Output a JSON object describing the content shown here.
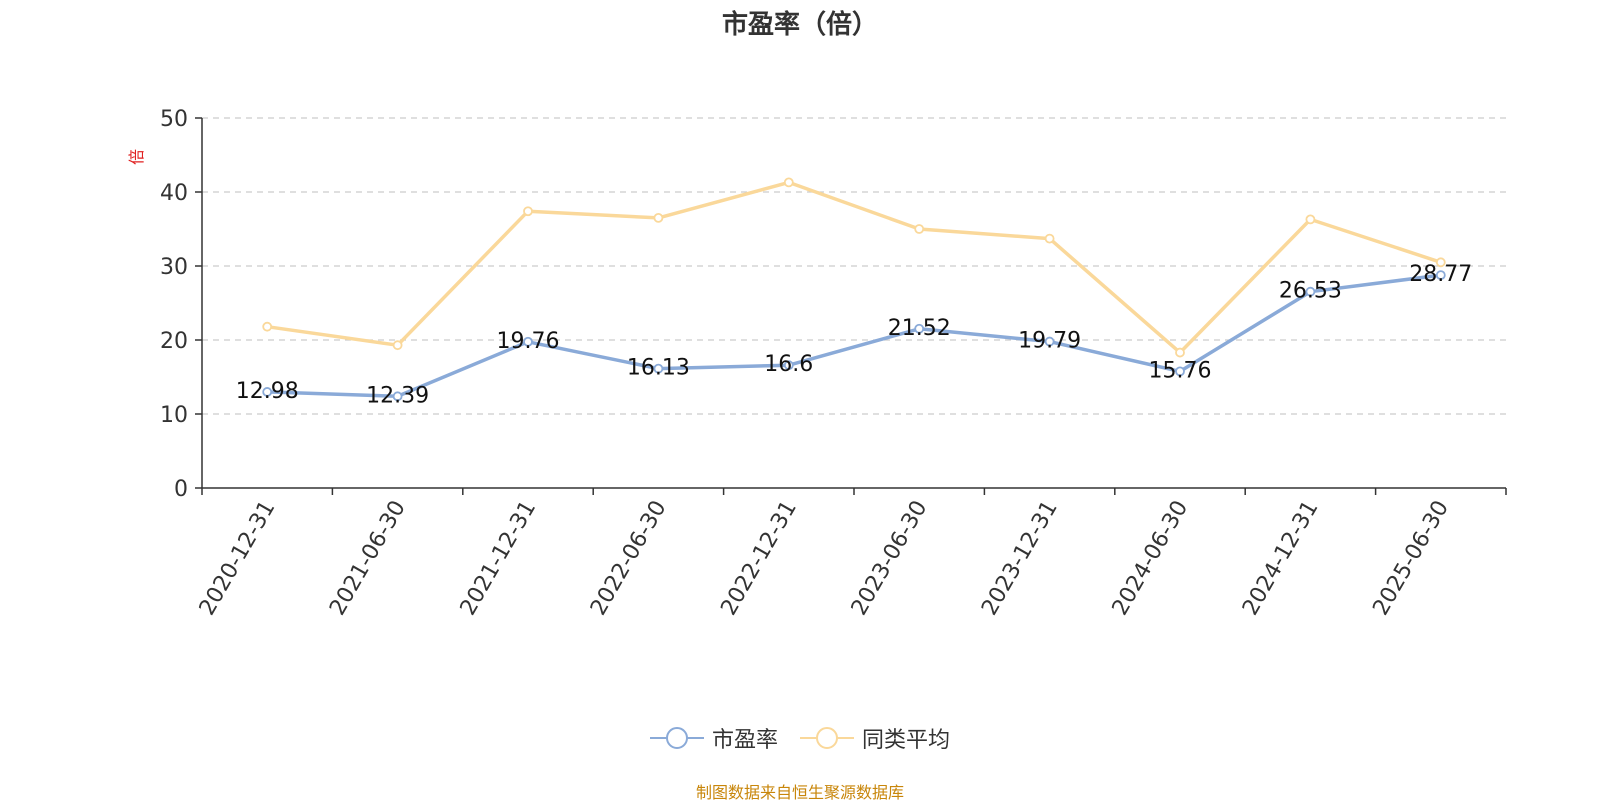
{
  "title": "市盈率（倍）",
  "source_note": "制图数据来自恒生聚源数据库",
  "colors": {
    "series_1": "#8aaad8",
    "series_2": "#fad89a",
    "axis": "#333333",
    "grid": "#cccccc",
    "ylabel": "#e02020"
  },
  "chart_data": {
    "type": "line",
    "title": "市盈率（倍）",
    "xlabel": "",
    "ylabel": "倍",
    "ylim": [
      0,
      50
    ],
    "yticks": [
      0,
      10,
      20,
      30,
      40,
      50
    ],
    "grid": true,
    "legend_position": "bottom-center",
    "categories": [
      "2020-12-31",
      "2021-06-30",
      "2021-12-31",
      "2022-06-30",
      "2022-12-31",
      "2023-06-30",
      "2023-12-31",
      "2024-06-30",
      "2024-12-31",
      "2025-06-30"
    ],
    "series": [
      {
        "name": "市盈率",
        "values": [
          12.98,
          12.39,
          19.76,
          16.13,
          16.6,
          21.52,
          19.79,
          15.76,
          26.53,
          28.77
        ],
        "labels": [
          "12.98",
          "12.39",
          "19.76",
          "16.13",
          "16.6",
          "21.52",
          "19.79",
          "15.76",
          "26.53",
          "28.77"
        ],
        "show_labels": true
      },
      {
        "name": "同类平均",
        "values": [
          21.8,
          19.3,
          37.4,
          36.5,
          41.3,
          35.0,
          33.7,
          18.3,
          36.3,
          30.5
        ],
        "show_labels": false
      }
    ]
  }
}
